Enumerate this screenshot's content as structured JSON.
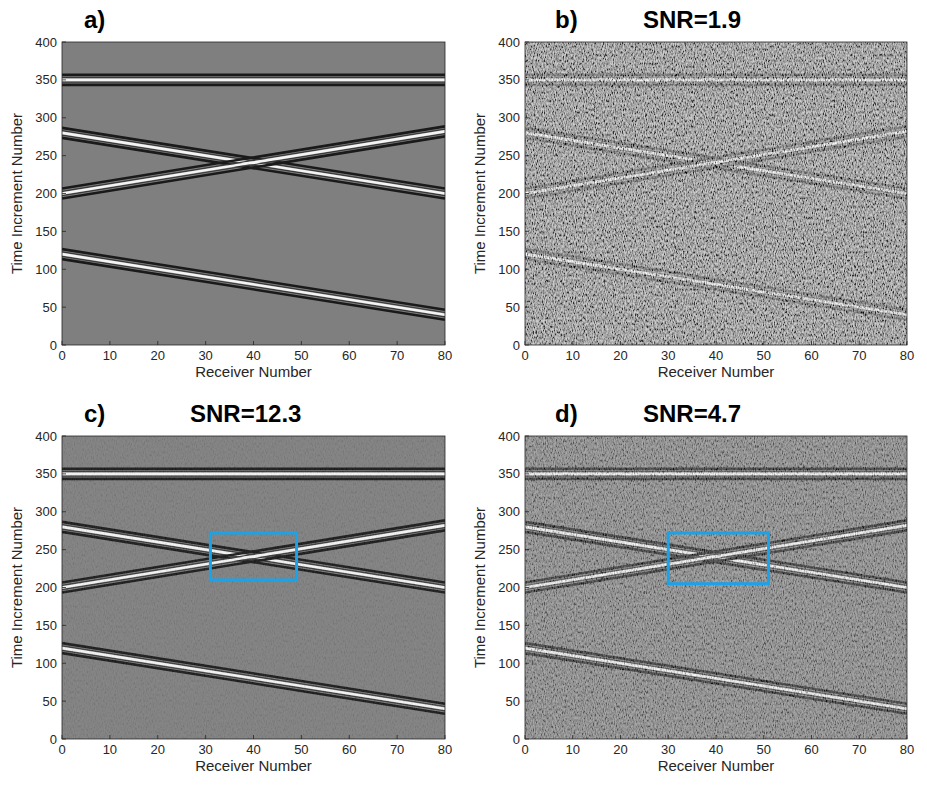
{
  "chart_data": [
    {
      "type": "line",
      "panel_label": "a)",
      "xlabel": "Receiver Number",
      "ylabel": "Time Increment Number",
      "xlim": [
        0,
        80
      ],
      "ylim": [
        0,
        400
      ],
      "xticks": [
        0,
        10,
        20,
        30,
        40,
        50,
        60,
        70,
        80
      ],
      "yticks": [
        0,
        50,
        100,
        150,
        200,
        250,
        300,
        350,
        400
      ],
      "x": [
        0,
        80
      ],
      "series": [
        {
          "values": [
            350,
            350
          ]
        },
        {
          "values": [
            280,
            200
          ]
        },
        {
          "values": [
            200,
            282
          ]
        },
        {
          "values": [
            120,
            40
          ]
        }
      ]
    },
    {
      "type": "line",
      "panel_label": "b)",
      "title": "SNR=1.9",
      "xlabel": "Receiver Number",
      "ylabel": "Time Increment Number",
      "xlim": [
        0,
        80
      ],
      "ylim": [
        0,
        400
      ],
      "xticks": [
        0,
        10,
        20,
        30,
        40,
        50,
        60,
        70,
        80
      ],
      "yticks": [
        0,
        50,
        100,
        150,
        200,
        250,
        300,
        350,
        400
      ],
      "x": [
        0,
        80
      ],
      "series": [
        {
          "values": [
            350,
            350
          ]
        },
        {
          "values": [
            280,
            200
          ]
        },
        {
          "values": [
            200,
            282
          ]
        },
        {
          "values": [
            120,
            40
          ]
        }
      ]
    },
    {
      "type": "line",
      "panel_label": "c)",
      "title": "SNR=12.3",
      "xlabel": "Receiver Number",
      "ylabel": "Time Increment Number",
      "xlim": [
        0,
        80
      ],
      "ylim": [
        0,
        400
      ],
      "xticks": [
        0,
        10,
        20,
        30,
        40,
        50,
        60,
        70,
        80
      ],
      "yticks": [
        0,
        50,
        100,
        150,
        200,
        250,
        300,
        350,
        400
      ],
      "x": [
        0,
        80
      ],
      "series": [
        {
          "values": [
            350,
            350
          ]
        },
        {
          "values": [
            280,
            200
          ]
        },
        {
          "values": [
            200,
            282
          ]
        },
        {
          "values": [
            120,
            40
          ]
        }
      ],
      "highlight_box": {
        "x": [
          31,
          49
        ],
        "y": [
          210,
          272
        ]
      }
    },
    {
      "type": "line",
      "panel_label": "d)",
      "title": "SNR=4.7",
      "xlabel": "Receiver Number",
      "ylabel": "Time Increment Number",
      "xlim": [
        0,
        80
      ],
      "ylim": [
        0,
        400
      ],
      "xticks": [
        0,
        10,
        20,
        30,
        40,
        50,
        60,
        70,
        80
      ],
      "yticks": [
        0,
        50,
        100,
        150,
        200,
        250,
        300,
        350,
        400
      ],
      "x": [
        0,
        80
      ],
      "series": [
        {
          "values": [
            350,
            350
          ]
        },
        {
          "values": [
            280,
            200
          ]
        },
        {
          "values": [
            200,
            282
          ]
        },
        {
          "values": [
            120,
            40
          ]
        }
      ],
      "highlight_box": {
        "x": [
          30,
          51
        ],
        "y": [
          205,
          272
        ]
      }
    }
  ]
}
